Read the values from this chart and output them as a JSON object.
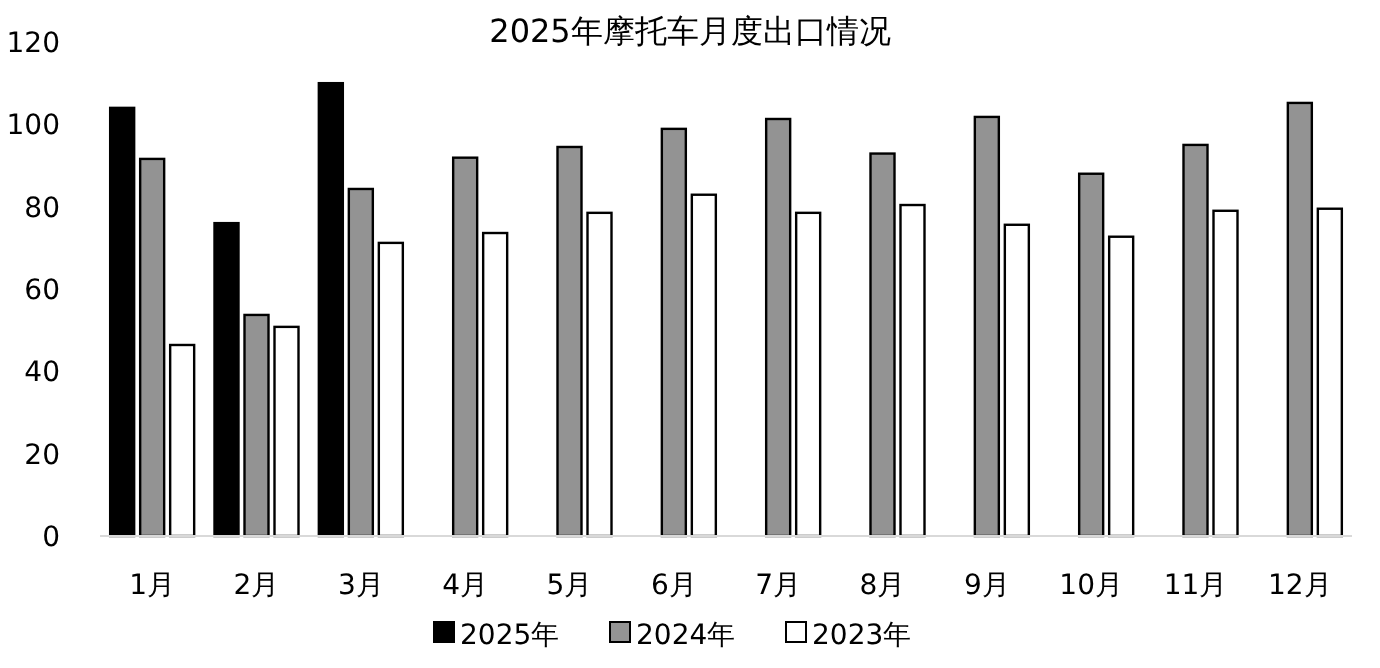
{
  "chart_data": {
    "type": "bar",
    "title": "2025年摩托车月度出口情况",
    "categories": [
      "1月",
      "2月",
      "3月",
      "4月",
      "5月",
      "6月",
      "7月",
      "8月",
      "9月",
      "10月",
      "11月",
      "12月"
    ],
    "series": [
      {
        "name": "2025年",
        "color": "#000000",
        "values": [
          104,
          76,
          110,
          null,
          null,
          null,
          null,
          null,
          null,
          null,
          null,
          null
        ]
      },
      {
        "name": "2024年",
        "color": "#939393",
        "values": [
          91.6,
          53.7,
          84.3,
          91.9,
          94.5,
          98.9,
          101.3,
          92.9,
          101.8,
          88,
          95,
          105.2
        ]
      },
      {
        "name": "2023年",
        "color": "#ffffff",
        "values": [
          46.4,
          50.8,
          71.2,
          73.6,
          78.5,
          82.9,
          78.5,
          80.4,
          75.6,
          72.7,
          79,
          79.5
        ]
      }
    ],
    "ylim": [
      0,
      120
    ],
    "yticks": [
      0,
      20,
      40,
      60,
      80,
      100,
      120
    ],
    "grid": false,
    "legend": "bottom"
  }
}
